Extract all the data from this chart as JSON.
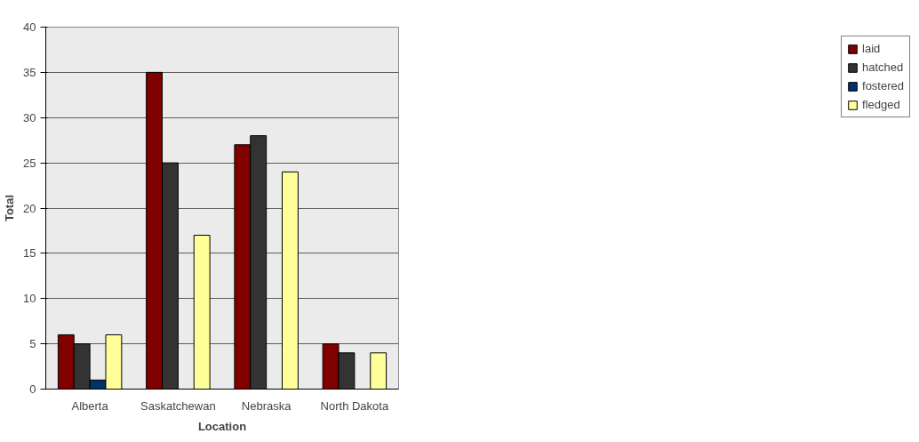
{
  "chart_data": {
    "type": "bar",
    "xlabel": "Location",
    "ylabel": "Total",
    "categories": [
      "Alberta",
      "Saskatchewan",
      "Nebraska",
      "North Dakota"
    ],
    "series": [
      {
        "name": "laid",
        "color": "#800000",
        "values": [
          6,
          35,
          27,
          5
        ]
      },
      {
        "name": "hatched",
        "color": "#333333",
        "values": [
          5,
          25,
          28,
          4
        ]
      },
      {
        "name": "fostered",
        "color": "#003366",
        "values": [
          1,
          null,
          null,
          null
        ]
      },
      {
        "name": "fledged",
        "color": "#ffff99",
        "values": [
          6,
          17,
          24,
          4
        ]
      }
    ],
    "ylim": [
      0,
      40
    ],
    "yticks": [
      0,
      5,
      10,
      15,
      20,
      25,
      30,
      35,
      40
    ],
    "grid": "y",
    "legend": "right"
  }
}
